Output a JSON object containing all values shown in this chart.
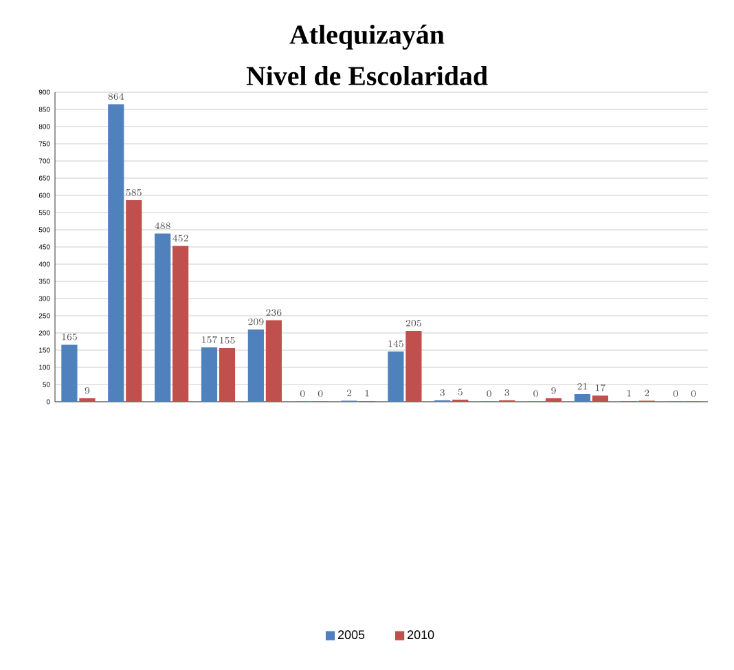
{
  "chart_data": {
    "type": "bar",
    "title": "Atlequizayán",
    "subtitle": "Nivel de Escolaridad",
    "categories": [
      null,
      null,
      null,
      null,
      null,
      null,
      null,
      null,
      null,
      null,
      null,
      null,
      null,
      null
    ],
    "series": [
      {
        "name": "2005",
        "color": "#4f81bd",
        "values": [
          165,
          864,
          488,
          157,
          209,
          0,
          2,
          145,
          3,
          0,
          0,
          21,
          1,
          0
        ]
      },
      {
        "name": "2010",
        "color": "#c0504d",
        "values": [
          9,
          585,
          452,
          155,
          236,
          0,
          1,
          205,
          5,
          3,
          9,
          17,
          2,
          0
        ]
      }
    ],
    "ylim": [
      0,
      900
    ],
    "yticks": [
      0,
      50,
      100,
      150,
      200,
      250,
      300,
      350,
      400,
      450,
      500,
      550,
      600,
      650,
      700,
      750,
      800,
      850,
      900
    ],
    "grid": "y",
    "legend": "bottom",
    "data_labels": true
  }
}
